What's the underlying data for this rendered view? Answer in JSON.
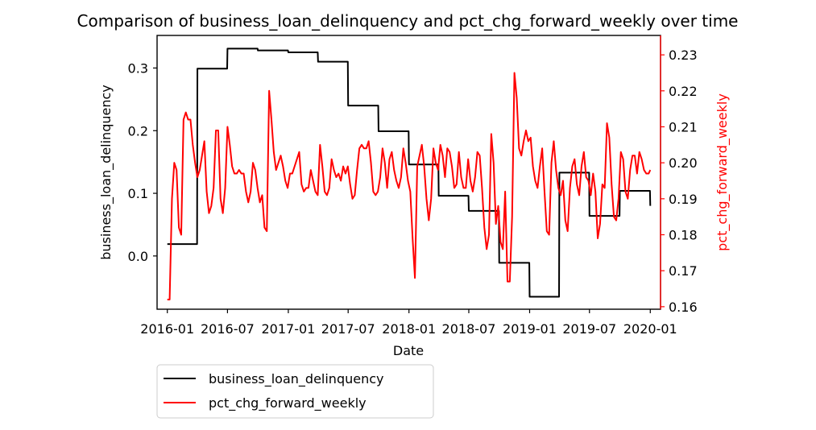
{
  "chart_data": {
    "type": "line",
    "title": "Comparison of business_loan_delinquency and pct_chg_forward_weekly over time",
    "xlabel": "Date",
    "ylabel_left": "business_loan_delinquency",
    "ylabel_right": "pct_chg_forward_weekly",
    "xlim": [
      "2015-12-01",
      "2020-02-01"
    ],
    "x_ticks": [
      "2016-01",
      "2016-07",
      "2017-01",
      "2017-07",
      "2018-01",
      "2018-07",
      "2019-01",
      "2019-07",
      "2020-01"
    ],
    "ylim_left": [
      -0.085,
      0.352
    ],
    "y_ticks_left": [
      "0.0",
      "0.1",
      "0.2",
      "0.3"
    ],
    "ylim_right": [
      0.1593,
      0.2354
    ],
    "y_ticks_right": [
      "0.16",
      "0.17",
      "0.18",
      "0.19",
      "0.20",
      "0.21",
      "0.22",
      "0.23"
    ],
    "legend_position": "below-left",
    "colors": {
      "left_series": "#000000",
      "right_series": "#ff0000"
    },
    "series": [
      {
        "name": "business_loan_delinquency",
        "axis": "left",
        "color": "#000000",
        "style": "step",
        "points": [
          [
            "2016-01-01",
            0.019
          ],
          [
            "2016-03-31",
            0.019
          ],
          [
            "2016-04-01",
            0.299
          ],
          [
            "2016-06-30",
            0.299
          ],
          [
            "2016-07-01",
            0.331
          ],
          [
            "2016-09-30",
            0.331
          ],
          [
            "2016-10-01",
            0.328
          ],
          [
            "2016-12-31",
            0.328
          ],
          [
            "2017-01-01",
            0.325
          ],
          [
            "2017-03-31",
            0.325
          ],
          [
            "2017-04-01",
            0.31
          ],
          [
            "2017-06-30",
            0.31
          ],
          [
            "2017-07-01",
            0.24
          ],
          [
            "2017-09-30",
            0.24
          ],
          [
            "2017-10-01",
            0.199
          ],
          [
            "2017-12-31",
            0.199
          ],
          [
            "2018-01-01",
            0.146
          ],
          [
            "2018-03-31",
            0.146
          ],
          [
            "2018-04-01",
            0.096
          ],
          [
            "2018-06-30",
            0.096
          ],
          [
            "2018-07-01",
            0.072
          ],
          [
            "2018-09-30",
            0.072
          ],
          [
            "2018-10-01",
            -0.011
          ],
          [
            "2018-12-31",
            -0.011
          ],
          [
            "2019-01-01",
            -0.065
          ],
          [
            "2019-03-31",
            -0.065
          ],
          [
            "2019-04-01",
            0.133
          ],
          [
            "2019-06-30",
            0.133
          ],
          [
            "2019-07-01",
            0.064
          ],
          [
            "2019-09-30",
            0.064
          ],
          [
            "2019-10-01",
            0.104
          ],
          [
            "2019-12-31",
            0.104
          ],
          [
            "2020-01-01",
            0.08
          ]
        ]
      },
      {
        "name": "pct_chg_forward_weekly",
        "axis": "right",
        "color": "#ff0000",
        "style": "line",
        "points": [
          [
            "2016-01-01",
            0.162
          ],
          [
            "2016-01-08",
            0.162
          ],
          [
            "2016-01-15",
            0.19
          ],
          [
            "2016-01-22",
            0.2
          ],
          [
            "2016-01-29",
            0.198
          ],
          [
            "2016-02-05",
            0.182
          ],
          [
            "2016-02-12",
            0.18
          ],
          [
            "2016-02-19",
            0.212
          ],
          [
            "2016-02-26",
            0.214
          ],
          [
            "2016-03-04",
            0.212
          ],
          [
            "2016-03-11",
            0.212
          ],
          [
            "2016-03-18",
            0.205
          ],
          [
            "2016-03-25",
            0.2
          ],
          [
            "2016-04-01",
            0.196
          ],
          [
            "2016-04-08",
            0.198
          ],
          [
            "2016-04-15",
            0.202
          ],
          [
            "2016-04-22",
            0.206
          ],
          [
            "2016-04-29",
            0.192
          ],
          [
            "2016-05-06",
            0.186
          ],
          [
            "2016-05-13",
            0.188
          ],
          [
            "2016-05-20",
            0.193
          ],
          [
            "2016-05-27",
            0.209
          ],
          [
            "2016-06-03",
            0.209
          ],
          [
            "2016-06-10",
            0.19
          ],
          [
            "2016-06-17",
            0.186
          ],
          [
            "2016-06-24",
            0.193
          ],
          [
            "2016-07-01",
            0.21
          ],
          [
            "2016-07-08",
            0.205
          ],
          [
            "2016-07-15",
            0.199
          ],
          [
            "2016-07-22",
            0.197
          ],
          [
            "2016-07-29",
            0.197
          ],
          [
            "2016-08-05",
            0.198
          ],
          [
            "2016-08-12",
            0.197
          ],
          [
            "2016-08-19",
            0.197
          ],
          [
            "2016-08-26",
            0.192
          ],
          [
            "2016-09-02",
            0.189
          ],
          [
            "2016-09-09",
            0.192
          ],
          [
            "2016-09-16",
            0.2
          ],
          [
            "2016-09-23",
            0.198
          ],
          [
            "2016-09-30",
            0.193
          ],
          [
            "2016-10-07",
            0.189
          ],
          [
            "2016-10-14",
            0.191
          ],
          [
            "2016-10-21",
            0.182
          ],
          [
            "2016-10-28",
            0.181
          ],
          [
            "2016-11-04",
            0.22
          ],
          [
            "2016-11-11",
            0.212
          ],
          [
            "2016-11-18",
            0.203
          ],
          [
            "2016-11-25",
            0.198
          ],
          [
            "2016-12-02",
            0.2
          ],
          [
            "2016-12-09",
            0.202
          ],
          [
            "2016-12-16",
            0.199
          ],
          [
            "2016-12-23",
            0.195
          ],
          [
            "2016-12-30",
            0.193
          ],
          [
            "2017-01-06",
            0.197
          ],
          [
            "2017-01-13",
            0.197
          ],
          [
            "2017-01-20",
            0.199
          ],
          [
            "2017-01-27",
            0.201
          ],
          [
            "2017-02-03",
            0.203
          ],
          [
            "2017-02-10",
            0.194
          ],
          [
            "2017-02-17",
            0.192
          ],
          [
            "2017-02-24",
            0.193
          ],
          [
            "2017-03-03",
            0.193
          ],
          [
            "2017-03-10",
            0.198
          ],
          [
            "2017-03-17",
            0.195
          ],
          [
            "2017-03-24",
            0.192
          ],
          [
            "2017-03-31",
            0.191
          ],
          [
            "2017-04-07",
            0.205
          ],
          [
            "2017-04-14",
            0.199
          ],
          [
            "2017-04-21",
            0.192
          ],
          [
            "2017-04-28",
            0.191
          ],
          [
            "2017-05-05",
            0.193
          ],
          [
            "2017-05-12",
            0.201
          ],
          [
            "2017-05-19",
            0.198
          ],
          [
            "2017-05-26",
            0.196
          ],
          [
            "2017-06-02",
            0.197
          ],
          [
            "2017-06-09",
            0.195
          ],
          [
            "2017-06-16",
            0.199
          ],
          [
            "2017-06-23",
            0.197
          ],
          [
            "2017-06-30",
            0.199
          ],
          [
            "2017-07-07",
            0.194
          ],
          [
            "2017-07-14",
            0.19
          ],
          [
            "2017-07-21",
            0.191
          ],
          [
            "2017-07-28",
            0.198
          ],
          [
            "2017-08-04",
            0.204
          ],
          [
            "2017-08-11",
            0.205
          ],
          [
            "2017-08-18",
            0.204
          ],
          [
            "2017-08-25",
            0.204
          ],
          [
            "2017-09-01",
            0.206
          ],
          [
            "2017-09-08",
            0.2
          ],
          [
            "2017-09-15",
            0.192
          ],
          [
            "2017-09-22",
            0.191
          ],
          [
            "2017-09-29",
            0.192
          ],
          [
            "2017-10-06",
            0.196
          ],
          [
            "2017-10-13",
            0.204
          ],
          [
            "2017-10-20",
            0.2
          ],
          [
            "2017-10-27",
            0.193
          ],
          [
            "2017-11-03",
            0.201
          ],
          [
            "2017-11-10",
            0.203
          ],
          [
            "2017-11-17",
            0.198
          ],
          [
            "2017-11-24",
            0.195
          ],
          [
            "2017-12-01",
            0.193
          ],
          [
            "2017-12-08",
            0.196
          ],
          [
            "2017-12-15",
            0.204
          ],
          [
            "2017-12-22",
            0.2
          ],
          [
            "2017-12-29",
            0.195
          ],
          [
            "2018-01-05",
            0.192
          ],
          [
            "2018-01-12",
            0.179
          ],
          [
            "2018-01-19",
            0.168
          ],
          [
            "2018-01-26",
            0.199
          ],
          [
            "2018-02-02",
            0.202
          ],
          [
            "2018-02-09",
            0.205
          ],
          [
            "2018-02-16",
            0.199
          ],
          [
            "2018-02-23",
            0.19
          ],
          [
            "2018-03-02",
            0.184
          ],
          [
            "2018-03-09",
            0.19
          ],
          [
            "2018-03-16",
            0.204
          ],
          [
            "2018-03-23",
            0.2
          ],
          [
            "2018-03-30",
            0.198
          ],
          [
            "2018-04-06",
            0.205
          ],
          [
            "2018-04-13",
            0.202
          ],
          [
            "2018-04-20",
            0.196
          ],
          [
            "2018-04-27",
            0.204
          ],
          [
            "2018-05-04",
            0.203
          ],
          [
            "2018-05-11",
            0.199
          ],
          [
            "2018-05-18",
            0.193
          ],
          [
            "2018-05-25",
            0.194
          ],
          [
            "2018-06-01",
            0.203
          ],
          [
            "2018-06-08",
            0.196
          ],
          [
            "2018-06-15",
            0.193
          ],
          [
            "2018-06-22",
            0.193
          ],
          [
            "2018-06-29",
            0.201
          ],
          [
            "2018-07-06",
            0.195
          ],
          [
            "2018-07-13",
            0.192
          ],
          [
            "2018-07-20",
            0.196
          ],
          [
            "2018-07-27",
            0.203
          ],
          [
            "2018-08-03",
            0.202
          ],
          [
            "2018-08-10",
            0.193
          ],
          [
            "2018-08-17",
            0.182
          ],
          [
            "2018-08-24",
            0.176
          ],
          [
            "2018-08-31",
            0.18
          ],
          [
            "2018-09-07",
            0.208
          ],
          [
            "2018-09-14",
            0.2
          ],
          [
            "2018-09-21",
            0.183
          ],
          [
            "2018-09-28",
            0.188
          ],
          [
            "2018-10-05",
            0.178
          ],
          [
            "2018-10-12",
            0.176
          ],
          [
            "2018-10-19",
            0.192
          ],
          [
            "2018-10-26",
            0.167
          ],
          [
            "2018-11-02",
            0.167
          ],
          [
            "2018-11-09",
            0.185
          ],
          [
            "2018-11-16",
            0.225
          ],
          [
            "2018-11-23",
            0.218
          ],
          [
            "2018-11-30",
            0.204
          ],
          [
            "2018-12-07",
            0.202
          ],
          [
            "2018-12-14",
            0.206
          ],
          [
            "2018-12-21",
            0.209
          ],
          [
            "2018-12-28",
            0.206
          ],
          [
            "2019-01-04",
            0.207
          ],
          [
            "2019-01-11",
            0.199
          ],
          [
            "2019-01-18",
            0.195
          ],
          [
            "2019-01-25",
            0.193
          ],
          [
            "2019-02-01",
            0.199
          ],
          [
            "2019-02-08",
            0.204
          ],
          [
            "2019-02-15",
            0.192
          ],
          [
            "2019-02-22",
            0.181
          ],
          [
            "2019-03-01",
            0.18
          ],
          [
            "2019-03-08",
            0.2
          ],
          [
            "2019-03-15",
            0.206
          ],
          [
            "2019-03-22",
            0.198
          ],
          [
            "2019-03-29",
            0.193
          ],
          [
            "2019-04-05",
            0.191
          ],
          [
            "2019-04-12",
            0.195
          ],
          [
            "2019-04-19",
            0.184
          ],
          [
            "2019-04-26",
            0.181
          ],
          [
            "2019-05-03",
            0.193
          ],
          [
            "2019-05-10",
            0.199
          ],
          [
            "2019-05-17",
            0.201
          ],
          [
            "2019-05-24",
            0.194
          ],
          [
            "2019-05-31",
            0.191
          ],
          [
            "2019-06-07",
            0.199
          ],
          [
            "2019-06-14",
            0.203
          ],
          [
            "2019-06-21",
            0.196
          ],
          [
            "2019-06-28",
            0.195
          ],
          [
            "2019-07-05",
            0.191
          ],
          [
            "2019-07-12",
            0.197
          ],
          [
            "2019-07-19",
            0.192
          ],
          [
            "2019-07-26",
            0.179
          ],
          [
            "2019-08-02",
            0.183
          ],
          [
            "2019-08-09",
            0.194
          ],
          [
            "2019-08-16",
            0.193
          ],
          [
            "2019-08-23",
            0.211
          ],
          [
            "2019-08-30",
            0.207
          ],
          [
            "2019-09-06",
            0.194
          ],
          [
            "2019-09-13",
            0.185
          ],
          [
            "2019-09-20",
            0.184
          ],
          [
            "2019-09-27",
            0.19
          ],
          [
            "2019-10-04",
            0.203
          ],
          [
            "2019-10-11",
            0.201
          ],
          [
            "2019-10-18",
            0.192
          ],
          [
            "2019-10-25",
            0.19
          ],
          [
            "2019-11-01",
            0.198
          ],
          [
            "2019-11-08",
            0.202
          ],
          [
            "2019-11-15",
            0.202
          ],
          [
            "2019-11-22",
            0.197
          ],
          [
            "2019-11-29",
            0.203
          ],
          [
            "2019-12-06",
            0.201
          ],
          [
            "2019-12-13",
            0.198
          ],
          [
            "2019-12-20",
            0.197
          ],
          [
            "2019-12-27",
            0.197
          ],
          [
            "2020-01-01",
            0.198
          ]
        ]
      }
    ]
  }
}
